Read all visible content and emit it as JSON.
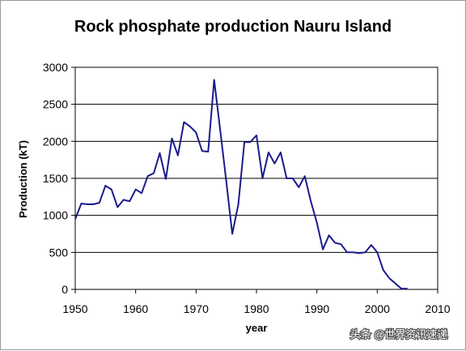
{
  "chart_data": {
    "type": "line",
    "title": "Rock phosphate production Nauru Island",
    "xlabel": "year",
    "ylabel": "Production (kT)",
    "xlim": [
      1950,
      2010
    ],
    "ylim": [
      0,
      3000
    ],
    "xticks": [
      1950,
      1960,
      1970,
      1980,
      1990,
      2000,
      2010
    ],
    "yticks": [
      0,
      500,
      1000,
      1500,
      2000,
      2500,
      3000
    ],
    "grid": "horizontal",
    "line_color": "#1a1a8c",
    "series": [
      {
        "x": [
          1950,
          1951,
          1952,
          1953,
          1954,
          1955,
          1956,
          1957,
          1958,
          1959,
          1960,
          1961,
          1962,
          1963,
          1964,
          1965,
          1966,
          1967,
          1968,
          1969,
          1970,
          1971,
          1972,
          1973,
          1974,
          1975,
          1976,
          1977,
          1978,
          1979,
          1980,
          1981,
          1982,
          1983,
          1984,
          1985,
          1986,
          1987,
          1988,
          1989,
          1990,
          1991,
          1992,
          1993,
          1994,
          1995,
          1996,
          1997,
          1998,
          1999,
          2000,
          2001,
          2002,
          2003,
          2004,
          2005
        ],
        "values": [
          950,
          1160,
          1150,
          1150,
          1170,
          1400,
          1350,
          1110,
          1210,
          1190,
          1350,
          1300,
          1530,
          1570,
          1840,
          1490,
          2040,
          1810,
          2260,
          2200,
          2120,
          1870,
          1860,
          2830,
          2150,
          1460,
          750,
          1150,
          1990,
          1990,
          2080,
          1500,
          1850,
          1700,
          1850,
          1500,
          1500,
          1380,
          1530,
          1190,
          900,
          540,
          730,
          630,
          610,
          500,
          500,
          490,
          500,
          600,
          500,
          260,
          150,
          80,
          10,
          10
        ]
      }
    ]
  },
  "watermark": "头条 @世界资讯速递"
}
